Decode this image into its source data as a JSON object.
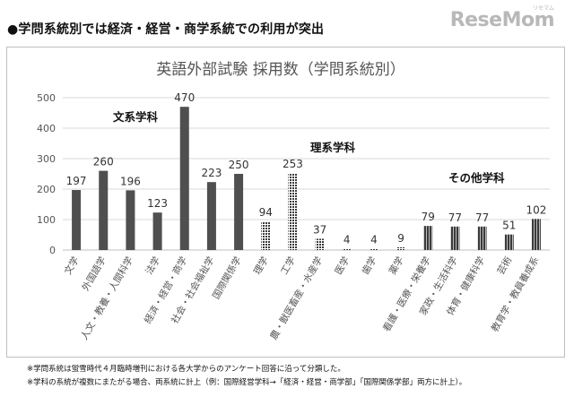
{
  "headline": "●学問系統別では経済・経営・商学系統での利用が突出",
  "logo": "ReseMom",
  "logo_ruby": "リセマム",
  "notes": [
    "※学問系統は蛍雪時代４月臨時増刊における各大学からのアンケート回答に沿って分類した。",
    "※学科の系統が複数にまたがる場合、両系統に計上（例：国際経営学科→「経済・経営・商学部」「国際関係学部」両方に計上）。"
  ],
  "colors": {
    "bar_solid": "#4f4f4f",
    "bar_pattern_dark": "#3a3a3a",
    "bar_pattern_light": "#9a9a9a",
    "grid": "#d9d9d9",
    "axis_text": "#555555"
  },
  "chart_data": {
    "type": "bar",
    "title": "英語外部試験 採用数（学問系統別）",
    "ylim": [
      0,
      500
    ],
    "yticks": [
      0,
      100,
      200,
      300,
      400,
      500
    ],
    "grid": true,
    "categories": [
      "文学",
      "外国語学",
      "人文・教養・人間科学",
      "法学",
      "経済・経営・商学",
      "社会・社会福祉学",
      "国際関係学",
      "理学",
      "工学",
      "農・獣医畜産・水産学",
      "医学",
      "歯学",
      "薬学",
      "看護・医療・栄養学",
      "家政・生活科学",
      "体育・健康科学",
      "芸術",
      "教育学・教員養成系"
    ],
    "values": [
      197,
      260,
      196,
      123,
      470,
      223,
      250,
      94,
      253,
      37,
      4,
      4,
      9,
      79,
      77,
      77,
      51,
      102
    ],
    "groups": [
      {
        "name": "文系学科",
        "pattern": "solid"
      },
      {
        "name": "理系学科",
        "pattern": "dots"
      },
      {
        "name": "その他学科",
        "pattern": "stripes"
      }
    ],
    "group_of": [
      0,
      0,
      0,
      0,
      0,
      0,
      0,
      1,
      1,
      1,
      1,
      1,
      1,
      2,
      2,
      2,
      2,
      2
    ]
  }
}
